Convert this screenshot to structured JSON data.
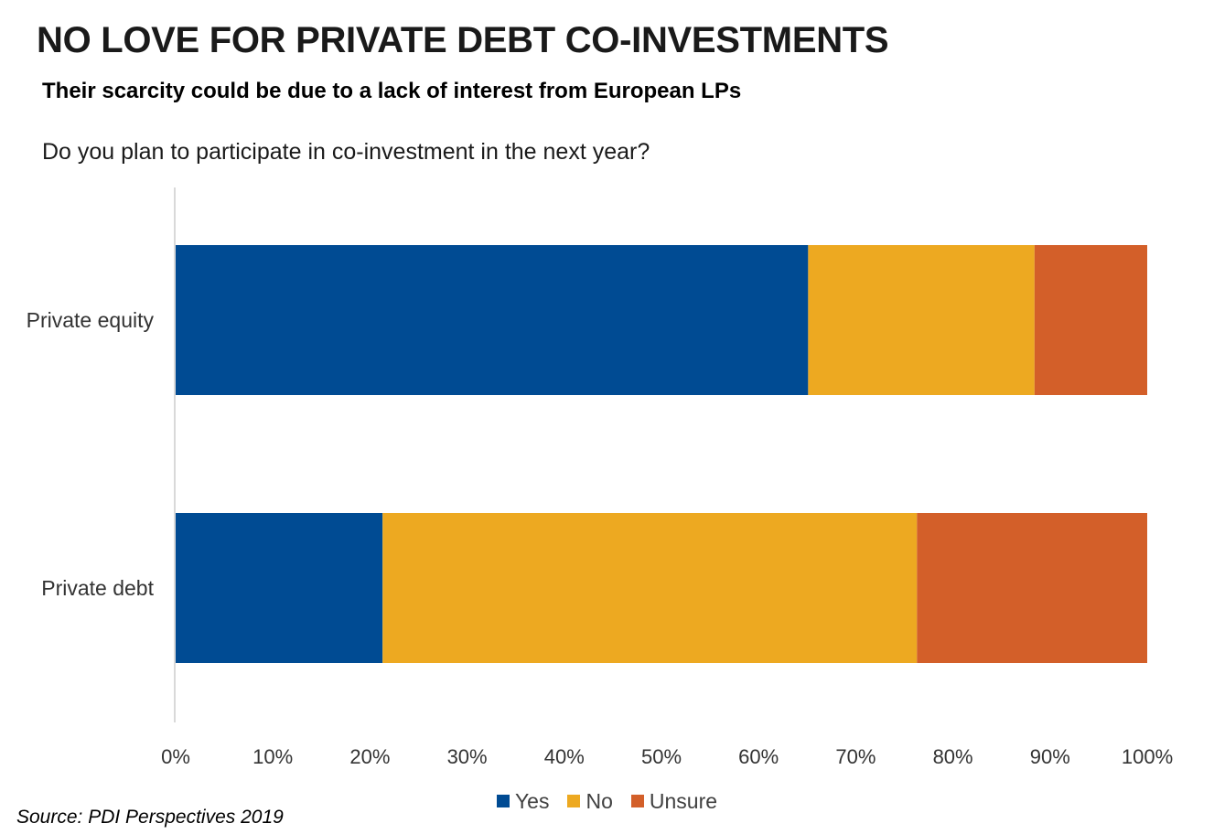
{
  "header": {
    "title": "NO LOVE FOR PRIVATE DEBT CO-INVESTMENTS",
    "subtitle": "Their scarcity could be due to a lack of interest from European LPs",
    "question": "Do you plan to participate in co-investment in the next year?"
  },
  "source": "Source: PDI Perspectives 2019",
  "chart_data": {
    "type": "bar",
    "orientation": "horizontal",
    "stacked": true,
    "categories": [
      "Private equity",
      "Private debt"
    ],
    "series": [
      {
        "name": "Yes",
        "color": "#004B93",
        "values": [
          65.1,
          21.3
        ]
      },
      {
        "name": "No",
        "color": "#EDA921",
        "values": [
          23.3,
          55
        ]
      },
      {
        "name": "Unsure",
        "color": "#D35F29",
        "values": [
          11.6,
          23.7
        ]
      }
    ],
    "xlim": [
      0,
      100
    ],
    "x_ticks": [
      "0%",
      "10%",
      "20%",
      "30%",
      "40%",
      "50%",
      "60%",
      "70%",
      "80%",
      "90%",
      "100%"
    ],
    "grid": false,
    "legend_position": "bottom"
  }
}
